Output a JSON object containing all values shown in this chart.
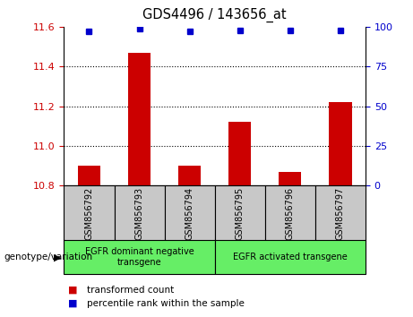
{
  "title": "GDS4496 / 143656_at",
  "samples": [
    "GSM856792",
    "GSM856793",
    "GSM856794",
    "GSM856795",
    "GSM856796",
    "GSM856797"
  ],
  "transformed_count": [
    10.9,
    11.47,
    10.9,
    11.12,
    10.87,
    11.22
  ],
  "percentile_rank": [
    97,
    99,
    97,
    98,
    98,
    98
  ],
  "ylim_left": [
    10.8,
    11.6
  ],
  "ylim_right": [
    0,
    100
  ],
  "yticks_left": [
    10.8,
    11.0,
    11.2,
    11.4,
    11.6
  ],
  "yticks_right": [
    0,
    25,
    50,
    75,
    100
  ],
  "bar_color": "#cc0000",
  "dot_color": "#0000cc",
  "groups": [
    {
      "label": "EGFR dominant negative\ntransgene",
      "samples": [
        0,
        1,
        2
      ],
      "color": "#66ee66"
    },
    {
      "label": "EGFR activated transgene",
      "samples": [
        3,
        4,
        5
      ],
      "color": "#66ee66"
    }
  ],
  "group_label": "genotype/variation",
  "legend_items": [
    {
      "label": "transformed count",
      "color": "#cc0000"
    },
    {
      "label": "percentile rank within the sample",
      "color": "#0000cc"
    }
  ],
  "label_area_color": "#c8c8c8",
  "plot_bg_color": "white",
  "bar_width": 0.45,
  "dot_size": 5
}
